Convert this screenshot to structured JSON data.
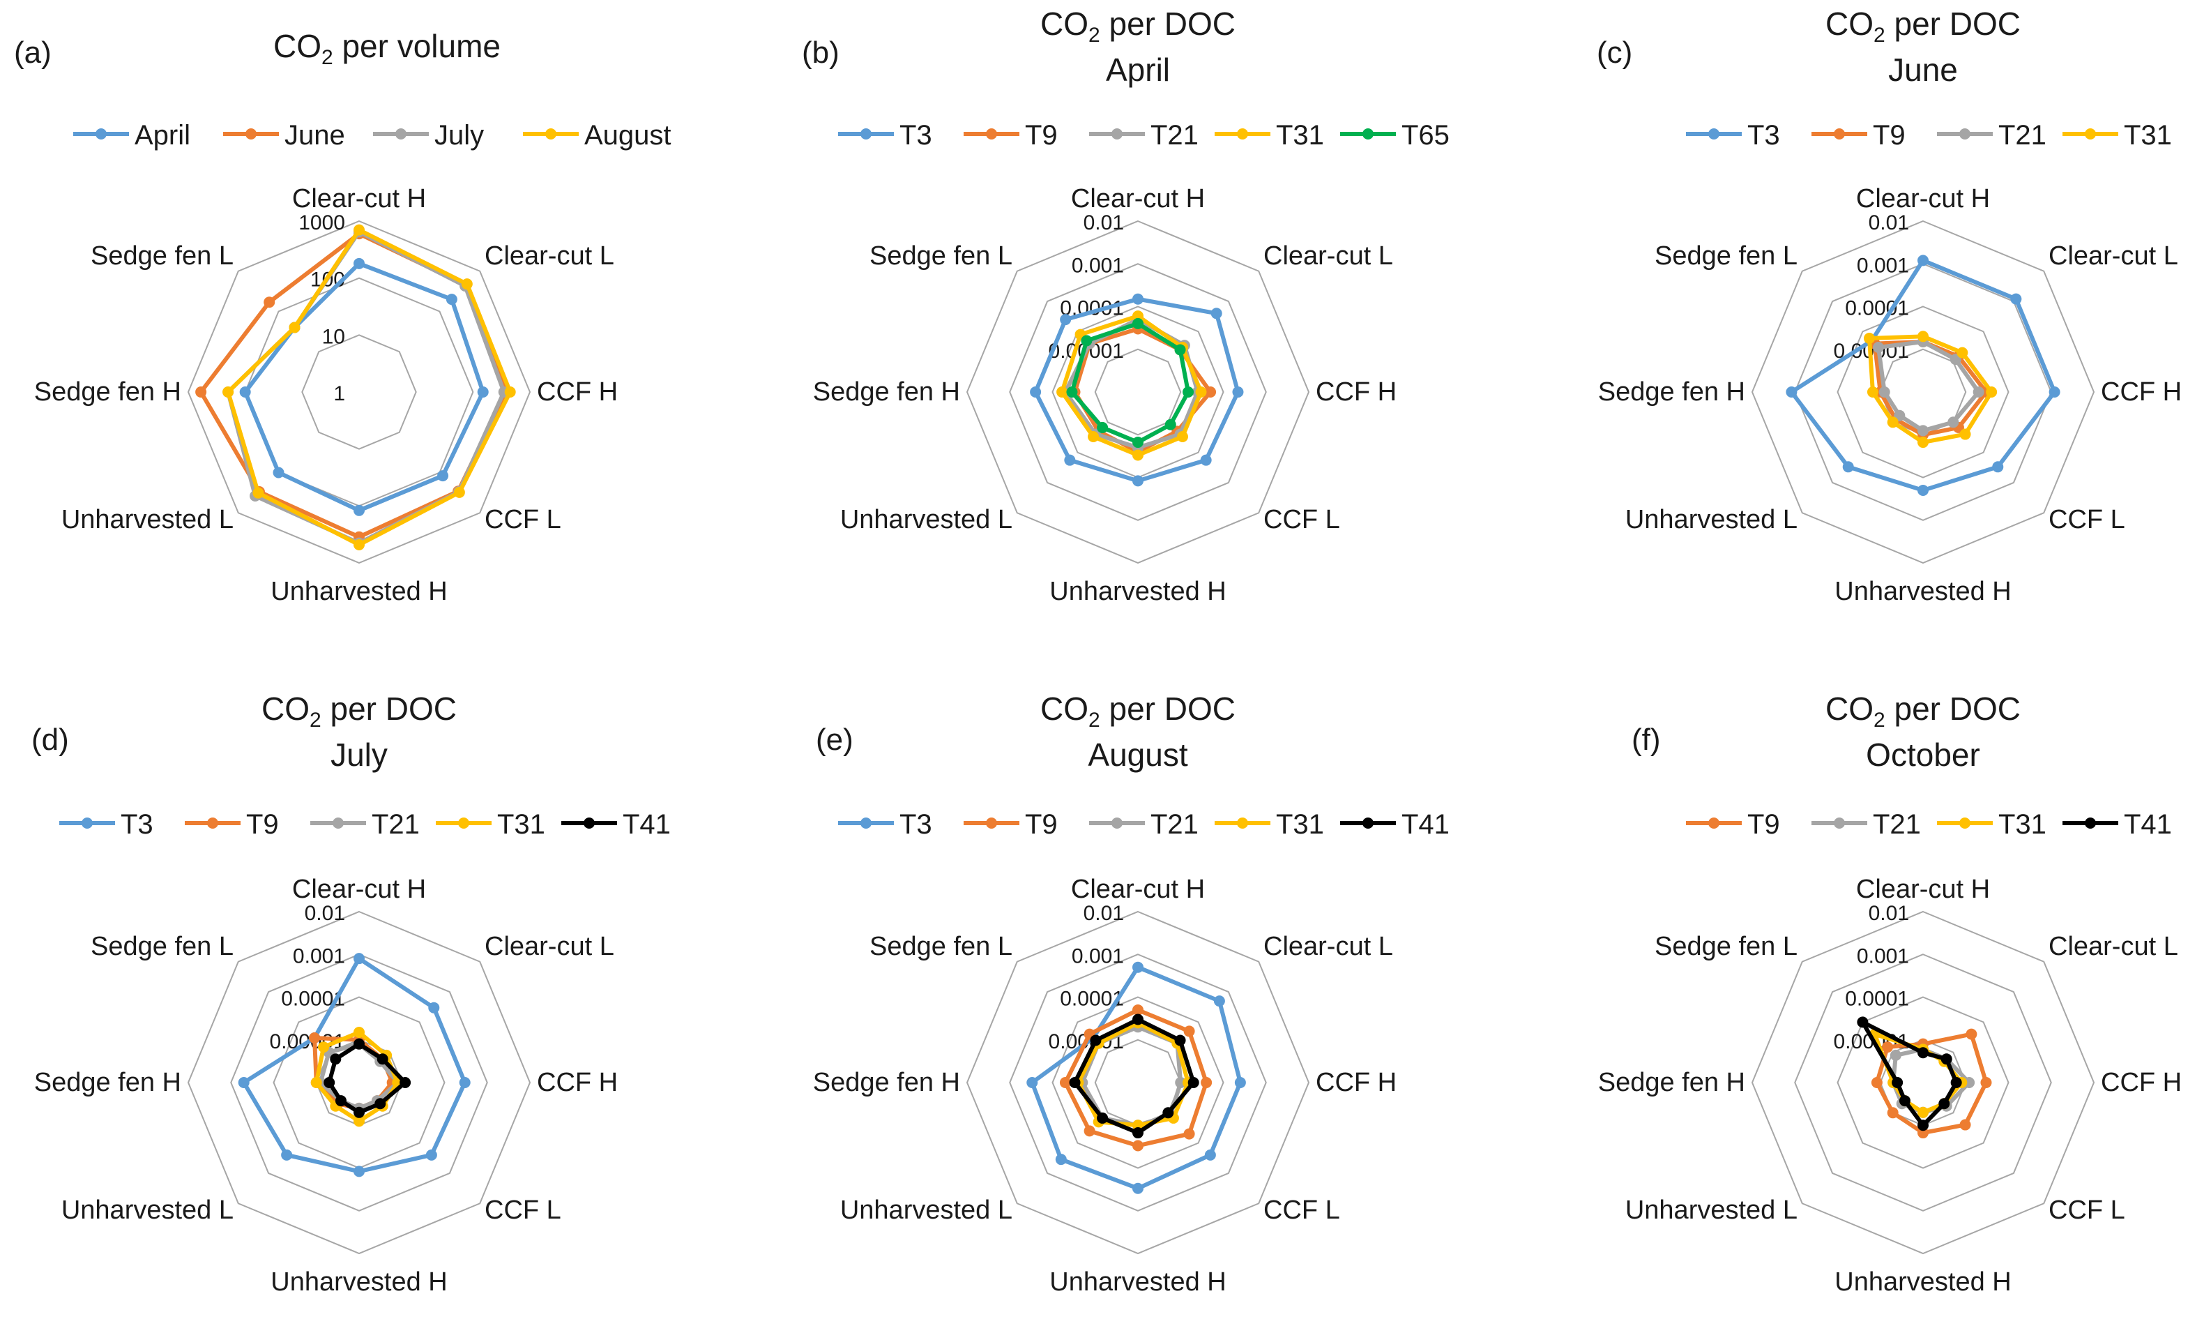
{
  "colors": {
    "T3": "#5b9bd5",
    "T9": "#ed7d31",
    "T21": "#a5a5a5",
    "T31": "#ffc000",
    "T41": "#000000",
    "T65": "#00b050",
    "April": "#5b9bd5",
    "June": "#ed7d31",
    "July": "#a5a5a5",
    "August": "#ffc000",
    "grid": "#a6a6a6"
  },
  "chart_data": [
    {
      "type": "radar",
      "panel_label": "(a)",
      "title": [
        "CO",
        "2",
        " per volume"
      ],
      "subtitle": "",
      "categories": [
        "Clear-cut H",
        "Clear-cut L",
        "CCF H",
        "CCF L",
        "Unharvested H",
        "Unharvested L",
        "Sedge fen H",
        "Sedge fen L"
      ],
      "scale": "log10",
      "rlim": [
        1,
        1000
      ],
      "ticks": [
        {
          "value": 1,
          "label": "1"
        },
        {
          "value": 10,
          "label": "10"
        },
        {
          "value": 100,
          "label": "100"
        },
        {
          "value": 1000,
          "label": "1000"
        }
      ],
      "series": [
        {
          "name": "April",
          "values": [
            180,
            200,
            150,
            120,
            120,
            100,
            100,
            40
          ]
        },
        {
          "name": "June",
          "values": [
            600,
            450,
            380,
            290,
            350,
            300,
            600,
            170
          ]
        },
        {
          "name": "July",
          "values": [
            650,
            430,
            350,
            300,
            450,
            380,
            200,
            40
          ]
        },
        {
          "name": "August",
          "values": [
            700,
            480,
            450,
            310,
            480,
            320,
            200,
            40
          ]
        }
      ]
    },
    {
      "type": "radar",
      "panel_label": "(b)",
      "title": [
        "CO",
        "2",
        " per DOC"
      ],
      "subtitle": "April",
      "categories": [
        "Clear-cut H",
        "Clear-cut L",
        "CCF H",
        "CCF L",
        "Unharvested H",
        "Unharvested L",
        "Sedge fen H",
        "Sedge fen L"
      ],
      "scale": "log10",
      "rlim": [
        1e-06,
        0.01
      ],
      "ticks": [
        {
          "value": 1e-05,
          "label": "0.00001"
        },
        {
          "value": 0.0001,
          "label": "0.0001"
        },
        {
          "value": 0.001,
          "label": "0.001"
        },
        {
          "value": 0.01,
          "label": "0.01"
        }
      ],
      "series": [
        {
          "name": "T3",
          "values": [
            0.00015,
            0.0004,
            0.00022,
            0.00018,
            0.00012,
            0.00018,
            0.00025,
            0.00025
          ]
        },
        {
          "name": "T9",
          "values": [
            3e-05,
            2.5e-05,
            5e-05,
            2e-05,
            2.5e-05,
            2e-05,
            3e-05,
            4e-05
          ]
        },
        {
          "name": "T21",
          "values": [
            5e-05,
            3.5e-05,
            2.5e-05,
            2.5e-05,
            2e-05,
            2.5e-05,
            5e-05,
            4e-05
          ]
        },
        {
          "name": "T31",
          "values": [
            6e-05,
            3e-05,
            3e-05,
            3e-05,
            3e-05,
            3e-05,
            6e-05,
            8e-05
          ]
        },
        {
          "name": "T65",
          "values": [
            4e-05,
            2.5e-05,
            1.5e-05,
            1.2e-05,
            1.5e-05,
            1.5e-05,
            3.5e-05,
            5e-05
          ]
        }
      ]
    },
    {
      "type": "radar",
      "panel_label": "(c)",
      "title": [
        "CO",
        "2",
        " per DOC"
      ],
      "subtitle": "June",
      "categories": [
        "Clear-cut H",
        "Clear-cut L",
        "CCF H",
        "CCF L",
        "Unharvested H",
        "Unharvested L",
        "Sedge fen H",
        "Sedge fen L"
      ],
      "scale": "log10",
      "rlim": [
        1e-06,
        0.01
      ],
      "ticks": [
        {
          "value": 1e-05,
          "label": "0.00001"
        },
        {
          "value": 0.0001,
          "label": "0.0001"
        },
        {
          "value": 0.001,
          "label": "0.001"
        },
        {
          "value": 0.01,
          "label": "0.01"
        }
      ],
      "series": [
        {
          "name": "T3",
          "values": [
            0.0012,
            0.0012,
            0.0012,
            0.0003,
            0.0002,
            0.0003,
            0.0012,
            5e-05
          ]
        },
        {
          "name": "T9",
          "values": [
            1.5e-05,
            1.5e-05,
            3e-05,
            1.5e-05,
            1e-05,
            8e-06,
            1e-05,
            4e-05
          ]
        },
        {
          "name": "T21",
          "values": [
            1.5e-05,
            1.2e-05,
            2e-05,
            1e-05,
            8e-06,
            6e-06,
            8e-06,
            3e-05
          ]
        },
        {
          "name": "T31",
          "values": [
            2e-05,
            2e-05,
            4e-05,
            2.5e-05,
            1.5e-05,
            1e-05,
            1.5e-05,
            6e-05
          ]
        }
      ]
    },
    {
      "type": "radar",
      "panel_label": "(d)",
      "title": [
        "CO",
        "2",
        " per DOC"
      ],
      "subtitle": "July",
      "categories": [
        "Clear-cut H",
        "Clear-cut L",
        "CCF H",
        "CCF L",
        "Unharvested H",
        "Unharvested L",
        "Sedge fen H",
        "Sedge fen L"
      ],
      "scale": "log10",
      "rlim": [
        1e-06,
        0.01
      ],
      "ticks": [
        {
          "value": 1e-05,
          "label": "0.00001"
        },
        {
          "value": 0.0001,
          "label": "0.0001"
        },
        {
          "value": 0.001,
          "label": "0.001"
        },
        {
          "value": 0.01,
          "label": "0.01"
        }
      ],
      "series": [
        {
          "name": "T3",
          "values": [
            0.0008,
            0.0003,
            0.0003,
            0.00025,
            0.00012,
            0.00025,
            0.0005,
            3e-05
          ]
        },
        {
          "name": "T9",
          "values": [
            1e-05,
            6e-06,
            6e-06,
            4e-06,
            4e-06,
            5e-06,
            1e-05,
            3e-05
          ]
        },
        {
          "name": "T21",
          "values": [
            8e-06,
            5e-06,
            8e-06,
            4e-06,
            4e-06,
            4e-06,
            8e-06,
            1e-05
          ]
        },
        {
          "name": "T31",
          "values": [
            1.5e-05,
            8e-06,
            8e-06,
            6e-06,
            8e-06,
            6e-06,
            1e-05,
            1.5e-05
          ]
        },
        {
          "name": "T41",
          "values": [
            8e-06,
            6e-06,
            1.2e-05,
            5e-06,
            5e-06,
            4e-06,
            5e-06,
            6e-06
          ]
        }
      ]
    },
    {
      "type": "radar",
      "panel_label": "(e)",
      "title": [
        "CO",
        "2",
        " per DOC"
      ],
      "subtitle": "August",
      "categories": [
        "Clear-cut H",
        "Clear-cut L",
        "CCF H",
        "CCF L",
        "Unharvested H",
        "Unharvested L",
        "Sedge fen H",
        "Sedge fen L"
      ],
      "scale": "log10",
      "rlim": [
        1e-06,
        0.01
      ],
      "ticks": [
        {
          "value": 1e-05,
          "label": "0.00001"
        },
        {
          "value": 0.0001,
          "label": "0.0001"
        },
        {
          "value": 0.001,
          "label": "0.001"
        },
        {
          "value": 0.01,
          "label": "0.01"
        }
      ],
      "series": [
        {
          "name": "T3",
          "values": [
            0.0005,
            0.0005,
            0.00025,
            0.00025,
            0.0003,
            0.00035,
            0.0003,
            3e-05
          ]
        },
        {
          "name": "T9",
          "values": [
            5e-05,
            5e-05,
            4e-05,
            5e-05,
            3e-05,
            4e-05,
            5e-05,
            4e-05
          ]
        },
        {
          "name": "T21",
          "values": [
            2e-05,
            2e-05,
            1e-05,
            1.2e-05,
            1e-05,
            1.5e-05,
            2e-05,
            2e-05
          ]
        },
        {
          "name": "T31",
          "values": [
            2.5e-05,
            2e-05,
            1.5e-05,
            1.5e-05,
            1e-05,
            2e-05,
            2.5e-05,
            2e-05
          ]
        },
        {
          "name": "T41",
          "values": [
            3e-05,
            2.5e-05,
            2e-05,
            1e-05,
            1.5e-05,
            1.5e-05,
            3e-05,
            2.5e-05
          ]
        }
      ]
    },
    {
      "type": "radar",
      "panel_label": "(f)",
      "title": [
        "CO",
        "2",
        " per DOC"
      ],
      "subtitle": "October",
      "categories": [
        "Clear-cut H",
        "Clear-cut L",
        "CCF H",
        "CCF L",
        "Unharvested H",
        "Unharvested L",
        "Sedge fen H",
        "Sedge fen L"
      ],
      "scale": "log10",
      "rlim": [
        1e-06,
        0.01
      ],
      "ticks": [
        {
          "value": 1e-05,
          "label": "0.00001"
        },
        {
          "value": 0.0001,
          "label": "0.0001"
        },
        {
          "value": 0.001,
          "label": "0.001"
        },
        {
          "value": 0.01,
          "label": "0.01"
        }
      ],
      "series": [
        {
          "name": "T9",
          "values": [
            8e-06,
            4e-05,
            3e-05,
            2.5e-05,
            1.5e-05,
            1e-05,
            1.2e-05,
            1.5e-05
          ]
        },
        {
          "name": "T21",
          "values": [
            6e-06,
            6e-06,
            1.2e-05,
            6e-06,
            5e-06,
            5e-06,
            5e-06,
            8e-06
          ]
        },
        {
          "name": "T31",
          "values": [
            6e-06,
            5e-06,
            8e-06,
            5e-06,
            5e-06,
            4e-06,
            5e-06,
            4e-05
          ]
        },
        {
          "name": "T41",
          "values": [
            5e-06,
            6e-06,
            6e-06,
            5e-06,
            1e-05,
            4e-06,
            4e-06,
            0.0001
          ]
        }
      ]
    }
  ]
}
